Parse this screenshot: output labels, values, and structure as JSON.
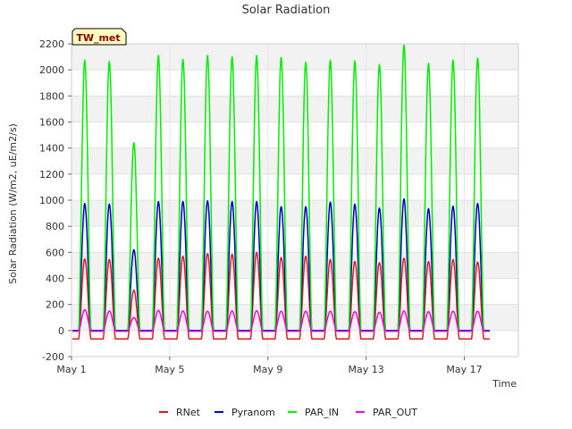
{
  "chart_data": {
    "type": "line",
    "title": "Solar Radiation",
    "xlabel": "Time",
    "ylabel": "Solar Radiation (W/m2, uE/m2/s)",
    "badge": "TW_met",
    "ylim": [
      -200,
      2200
    ],
    "xlim_days": [
      1,
      19.2
    ],
    "y_ticks": [
      -200,
      0,
      200,
      400,
      600,
      800,
      1000,
      1200,
      1400,
      1600,
      1800,
      2000,
      2200
    ],
    "y_tick_labels": [
      "-200",
      "0",
      "200",
      "400",
      "600",
      "800",
      "1000",
      "1200",
      "1400",
      "1600",
      "1800",
      "2000",
      "2200"
    ],
    "x_ticks": [
      1,
      5,
      9,
      13,
      17
    ],
    "x_tick_labels": [
      "May 1",
      "May 5",
      "May 9",
      "May 13",
      "May 17"
    ],
    "grid": true,
    "legend_position": "bottom-center",
    "day_offset": 0.04,
    "series": [
      {
        "name": "RNet",
        "color": "#e31a1c",
        "night": -65,
        "daily_peaks": [
          550,
          545,
          310,
          555,
          570,
          590,
          585,
          600,
          560,
          570,
          545,
          530,
          520,
          555,
          530,
          545,
          525
        ]
      },
      {
        "name": "Pyranom",
        "color": "#0000cc",
        "night": 0,
        "daily_peaks": [
          975,
          970,
          620,
          990,
          990,
          995,
          990,
          990,
          950,
          950,
          985,
          970,
          940,
          1010,
          935,
          955,
          975
        ]
      },
      {
        "name": "PAR_IN",
        "color": "#00ee00",
        "night": -5,
        "daily_peaks": [
          2075,
          2065,
          1440,
          2110,
          2080,
          2110,
          2100,
          2110,
          2095,
          2060,
          2075,
          2070,
          2040,
          2190,
          2050,
          2075,
          2090
        ]
      },
      {
        "name": "PAR_OUT",
        "color": "#ee00ee",
        "night": -5,
        "daily_peaks": [
          160,
          150,
          100,
          155,
          150,
          148,
          150,
          152,
          148,
          148,
          148,
          145,
          140,
          150,
          145,
          148,
          148
        ]
      }
    ]
  }
}
